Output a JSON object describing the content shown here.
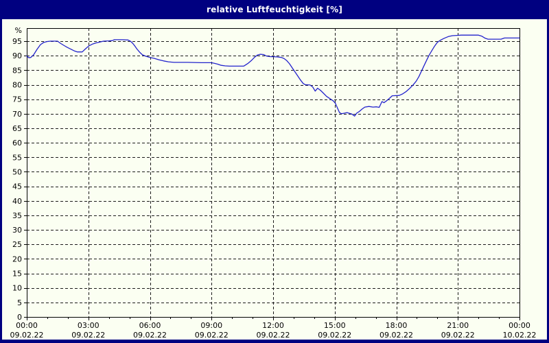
{
  "window": {
    "title": "relative Luftfeuchtigkeit [%]"
  },
  "colors": {
    "titlebar_bg": "#000080",
    "title_text": "#ffffff",
    "window_border": "#000080",
    "chart_bg": "#fbfff2",
    "frame": "#000000",
    "grid": "#1a1a1a",
    "tick_text": "#000000",
    "line": "#2222cc"
  },
  "chart_data": {
    "type": "line",
    "title": "relative Luftfeuchtigkeit [%]",
    "ylabel": "%",
    "xlabel": "",
    "grid": true,
    "legend": "none",
    "ylim": [
      0,
      99.5
    ],
    "x_range_minutes": [
      0,
      1440
    ],
    "y_ticks": [
      0,
      5,
      10,
      15,
      20,
      25,
      30,
      35,
      40,
      45,
      50,
      55,
      60,
      65,
      70,
      75,
      80,
      85,
      90,
      95
    ],
    "x_minor_tick_every_minutes": 60,
    "x_ticks": [
      {
        "minutes": 0,
        "time": "00:00",
        "date": "09.02.22"
      },
      {
        "minutes": 180,
        "time": "03:00",
        "date": "09.02.22"
      },
      {
        "minutes": 360,
        "time": "06:00",
        "date": "09.02.22"
      },
      {
        "minutes": 540,
        "time": "09:00",
        "date": "09.02.22"
      },
      {
        "minutes": 720,
        "time": "12:00",
        "date": "09.02.22"
      },
      {
        "minutes": 900,
        "time": "15:00",
        "date": "09.02.22"
      },
      {
        "minutes": 1080,
        "time": "18:00",
        "date": "09.02.22"
      },
      {
        "minutes": 1260,
        "time": "21:00",
        "date": "09.02.22"
      },
      {
        "minutes": 1440,
        "time": "00:00",
        "date": "10.02.22"
      }
    ],
    "series": [
      {
        "name": "relative Luftfeuchtigkeit",
        "unit": "%",
        "points": [
          [
            0,
            89.9
          ],
          [
            6,
            89.3
          ],
          [
            12,
            89.4
          ],
          [
            20,
            90.3
          ],
          [
            30,
            92.2
          ],
          [
            40,
            93.8
          ],
          [
            50,
            94.6
          ],
          [
            60,
            94.9
          ],
          [
            70,
            95.0
          ],
          [
            90,
            95.0
          ],
          [
            98,
            94.3
          ],
          [
            108,
            93.6
          ],
          [
            118,
            92.9
          ],
          [
            130,
            92.2
          ],
          [
            140,
            91.6
          ],
          [
            148,
            91.3
          ],
          [
            162,
            91.3
          ],
          [
            172,
            92.4
          ],
          [
            182,
            93.4
          ],
          [
            192,
            94.0
          ],
          [
            202,
            94.4
          ],
          [
            214,
            94.7
          ],
          [
            224,
            95.0
          ],
          [
            240,
            95.1
          ],
          [
            250,
            95.2
          ],
          [
            256,
            95.5
          ],
          [
            280,
            95.5
          ],
          [
            296,
            95.4
          ],
          [
            304,
            94.9
          ],
          [
            310,
            94.2
          ],
          [
            316,
            93.3
          ],
          [
            322,
            92.3
          ],
          [
            330,
            91.2
          ],
          [
            338,
            90.3
          ],
          [
            348,
            89.8
          ],
          [
            360,
            89.4
          ],
          [
            372,
            89.1
          ],
          [
            386,
            88.6
          ],
          [
            400,
            88.2
          ],
          [
            414,
            87.9
          ],
          [
            430,
            87.7
          ],
          [
            470,
            87.7
          ],
          [
            510,
            87.6
          ],
          [
            540,
            87.6
          ],
          [
            548,
            87.4
          ],
          [
            558,
            87.1
          ],
          [
            568,
            86.7
          ],
          [
            580,
            86.5
          ],
          [
            592,
            86.4
          ],
          [
            634,
            86.4
          ],
          [
            646,
            87.3
          ],
          [
            656,
            88.3
          ],
          [
            666,
            89.5
          ],
          [
            674,
            90.2
          ],
          [
            682,
            90.5
          ],
          [
            692,
            90.4
          ],
          [
            700,
            89.9
          ],
          [
            710,
            89.7
          ],
          [
            730,
            89.6
          ],
          [
            744,
            89.4
          ],
          [
            752,
            89.0
          ],
          [
            760,
            88.3
          ],
          [
            768,
            87.2
          ],
          [
            776,
            85.8
          ],
          [
            784,
            84.4
          ],
          [
            792,
            83.0
          ],
          [
            800,
            81.6
          ],
          [
            808,
            80.4
          ],
          [
            814,
            80.0
          ],
          [
            828,
            79.9
          ],
          [
            836,
            79.2
          ],
          [
            843,
            77.8
          ],
          [
            850,
            78.8
          ],
          [
            858,
            78.1
          ],
          [
            866,
            77.2
          ],
          [
            876,
            76.0
          ],
          [
            886,
            75.2
          ],
          [
            896,
            74.4
          ],
          [
            902,
            73.6
          ],
          [
            908,
            72.0
          ],
          [
            914,
            70.4
          ],
          [
            920,
            70.0
          ],
          [
            928,
            70.2
          ],
          [
            936,
            70.4
          ],
          [
            944,
            70.1
          ],
          [
            950,
            69.9
          ],
          [
            958,
            69.2
          ],
          [
            964,
            70.2
          ],
          [
            972,
            70.8
          ],
          [
            980,
            71.6
          ],
          [
            988,
            72.3
          ],
          [
            1000,
            72.5
          ],
          [
            1012,
            72.3
          ],
          [
            1022,
            72.4
          ],
          [
            1030,
            72.2
          ],
          [
            1038,
            74.2
          ],
          [
            1044,
            73.8
          ],
          [
            1052,
            74.5
          ],
          [
            1060,
            75.3
          ],
          [
            1068,
            76.2
          ],
          [
            1088,
            76.3
          ],
          [
            1098,
            76.8
          ],
          [
            1108,
            77.6
          ],
          [
            1118,
            78.6
          ],
          [
            1128,
            79.8
          ],
          [
            1138,
            81.2
          ],
          [
            1146,
            82.8
          ],
          [
            1154,
            84.8
          ],
          [
            1162,
            86.8
          ],
          [
            1170,
            88.8
          ],
          [
            1176,
            90.2
          ],
          [
            1184,
            91.8
          ],
          [
            1192,
            93.3
          ],
          [
            1200,
            94.6
          ],
          [
            1210,
            95.4
          ],
          [
            1220,
            96.0
          ],
          [
            1232,
            96.6
          ],
          [
            1244,
            96.9
          ],
          [
            1256,
            97.0
          ],
          [
            1270,
            97.1
          ],
          [
            1320,
            97.1
          ],
          [
            1330,
            96.7
          ],
          [
            1340,
            96.0
          ],
          [
            1348,
            95.7
          ],
          [
            1386,
            95.7
          ],
          [
            1396,
            96.1
          ],
          [
            1440,
            96.1
          ]
        ]
      }
    ]
  }
}
